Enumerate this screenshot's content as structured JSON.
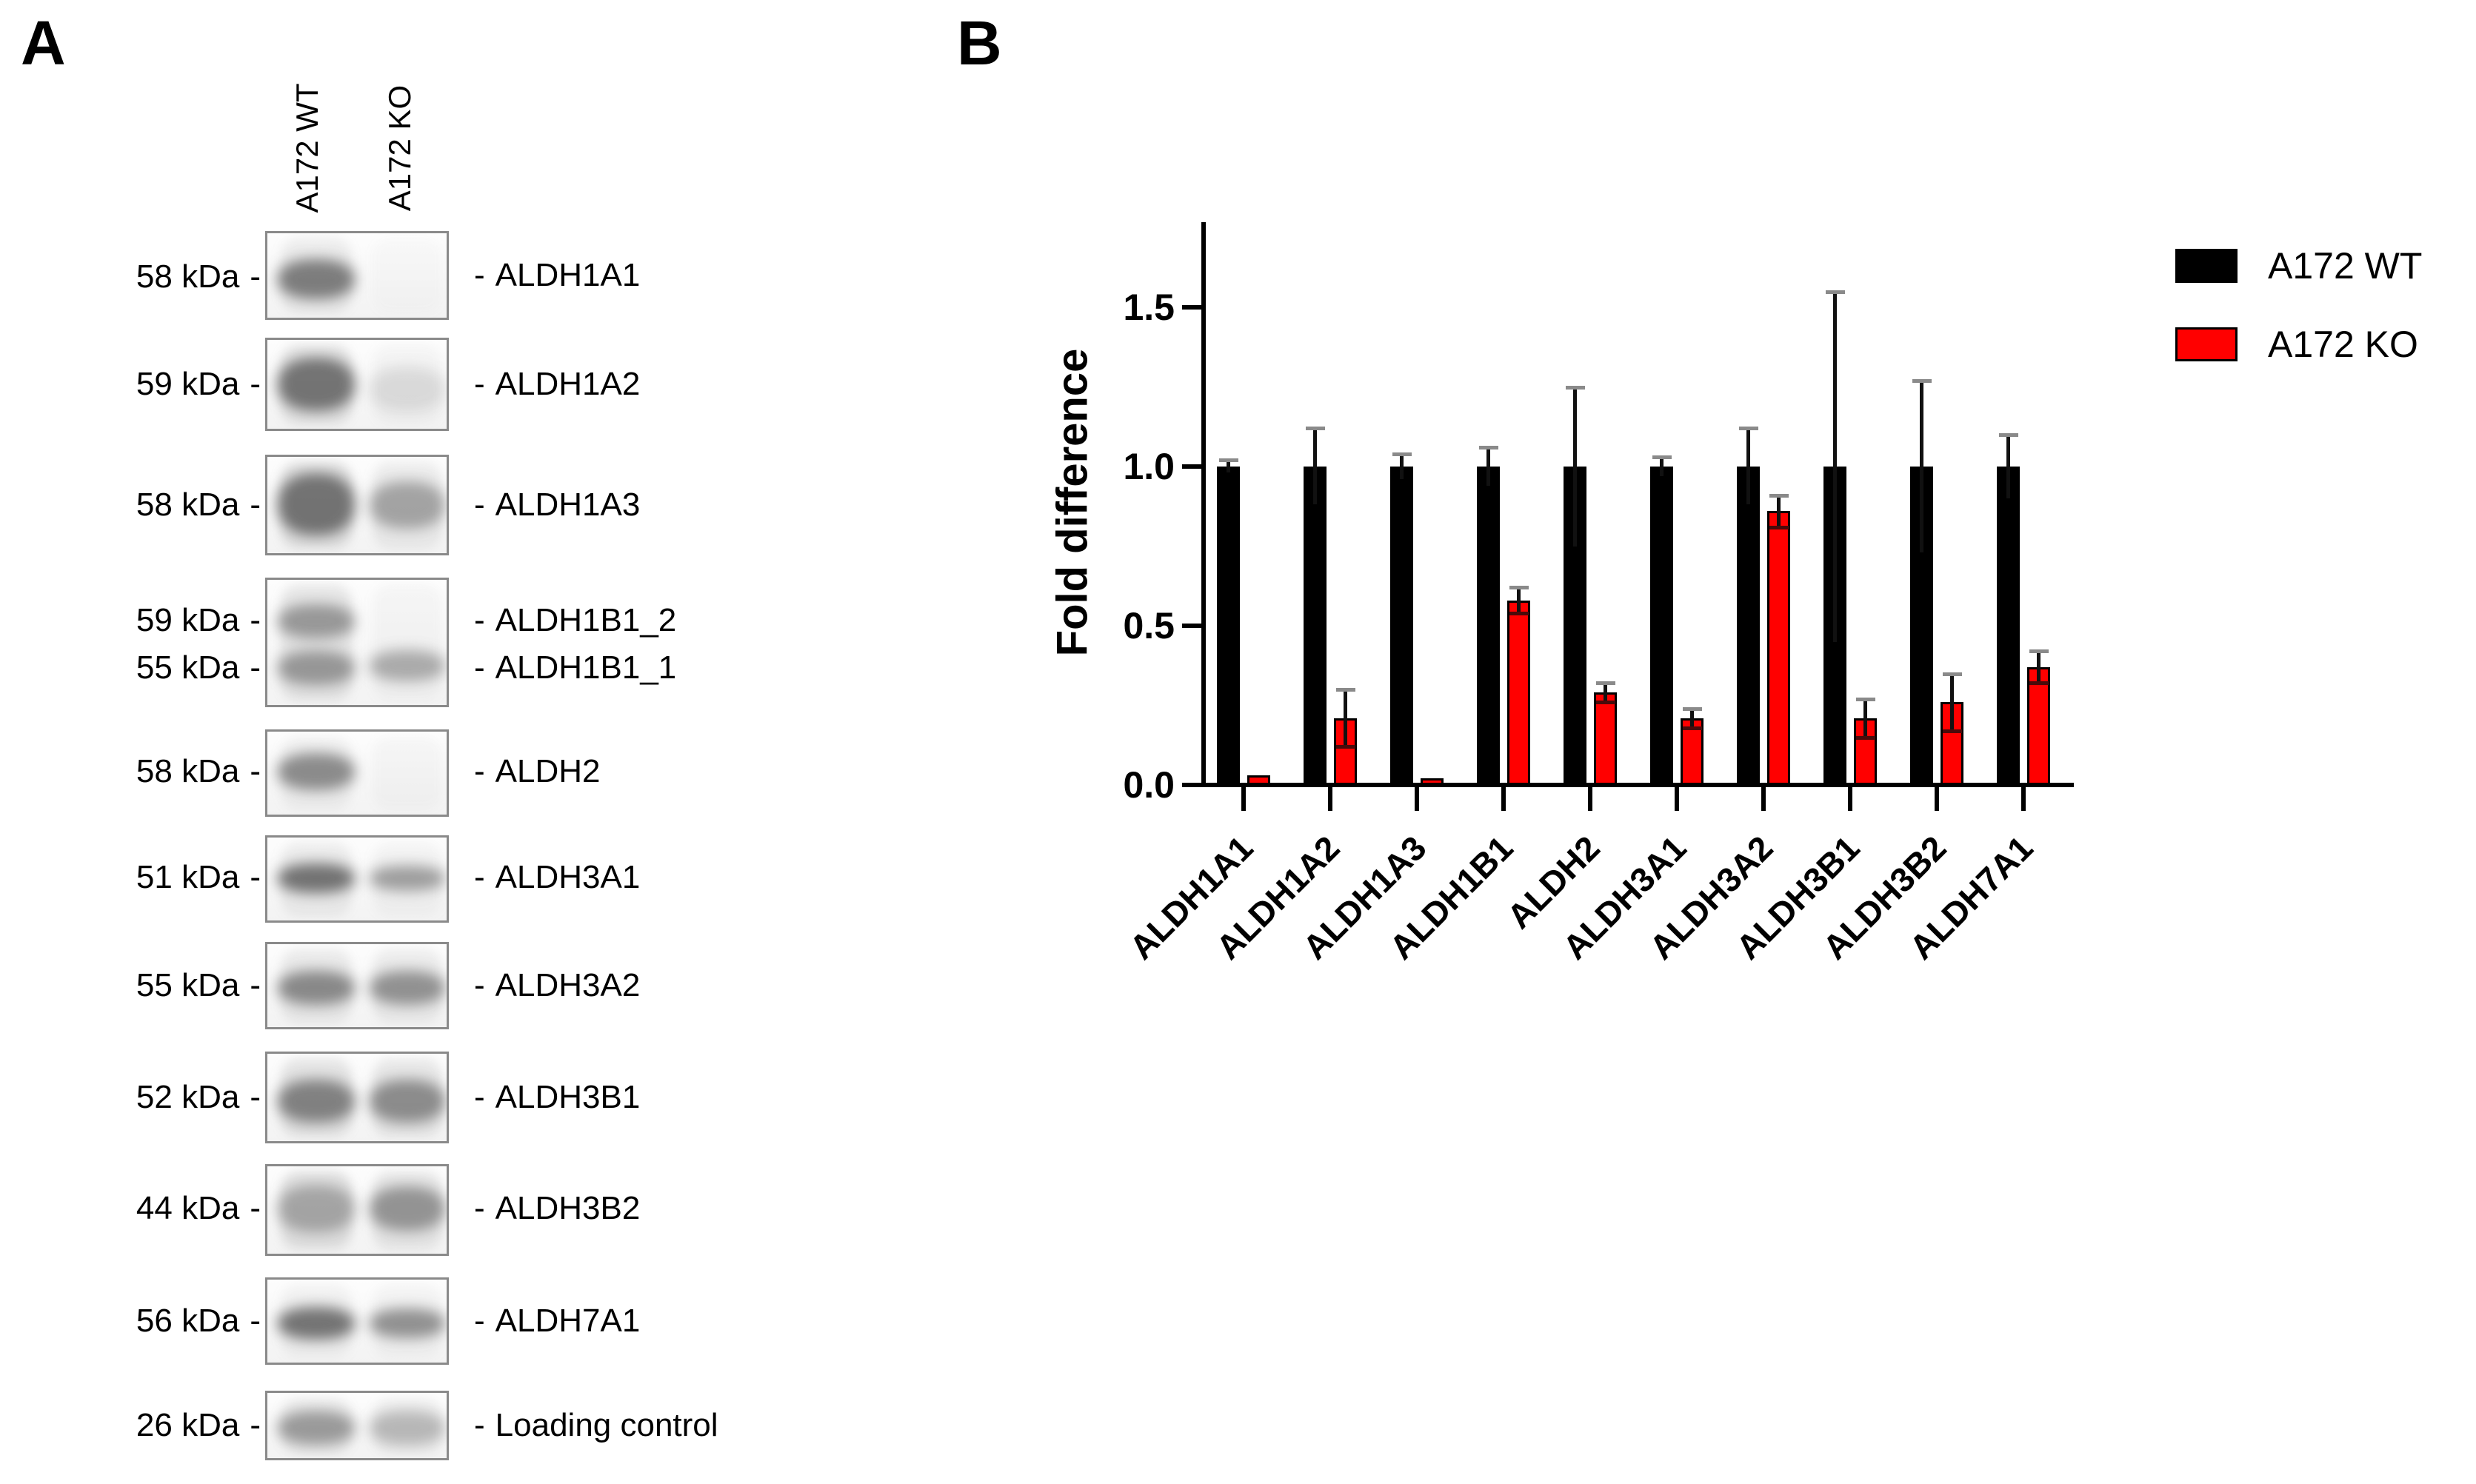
{
  "panel_a": {
    "label": "A",
    "tick_dash": "-",
    "column_headers": [
      "A172 WT",
      "A172 KO"
    ],
    "rows": [
      {
        "kda": [
          {
            "text": "58 kDa",
            "pos": 0.52
          }
        ],
        "protein": [
          {
            "text": "ALDH1A1",
            "pos": 0.5
          }
        ],
        "wt": {
          "smear": 0.1,
          "bands": [
            {
              "pos": 0.52,
              "h": 54,
              "a": 0.62
            }
          ]
        },
        "ko": {
          "smear": 0.03,
          "bands": []
        }
      },
      {
        "kda": [
          {
            "text": "59 kDa",
            "pos": 0.5
          }
        ],
        "protein": [
          {
            "text": "ALDH1A2",
            "pos": 0.5
          }
        ],
        "wt": {
          "smear": 0.16,
          "bands": [
            {
              "pos": 0.48,
              "h": 72,
              "a": 0.66
            }
          ]
        },
        "ko": {
          "smear": 0.05,
          "bands": [
            {
              "pos": 0.52,
              "h": 60,
              "a": 0.13
            }
          ]
        }
      },
      {
        "kda": [
          {
            "text": "58 kDa",
            "pos": 0.5
          }
        ],
        "protein": [
          {
            "text": "ALDH1A3",
            "pos": 0.5
          }
        ],
        "wt": {
          "smear": 0.18,
          "bands": [
            {
              "pos": 0.47,
              "h": 84,
              "a": 0.66
            }
          ]
        },
        "ko": {
          "smear": 0.1,
          "bands": [
            {
              "pos": 0.48,
              "h": 64,
              "a": 0.4
            }
          ]
        }
      },
      {
        "kda": [
          {
            "text": "59 kDa",
            "pos": 0.33
          },
          {
            "text": "55 kDa",
            "pos": 0.7
          }
        ],
        "protein": [
          {
            "text": "ALDH1B1_2",
            "pos": 0.33
          },
          {
            "text": "ALDH1B1_1",
            "pos": 0.7
          }
        ],
        "wt": {
          "smear": 0.15,
          "bands": [
            {
              "pos": 0.32,
              "h": 46,
              "a": 0.45
            },
            {
              "pos": 0.68,
              "h": 46,
              "a": 0.45
            }
          ]
        },
        "ko": {
          "smear": 0.05,
          "bands": [
            {
              "pos": 0.66,
              "h": 42,
              "a": 0.38
            }
          ]
        }
      },
      {
        "kda": [
          {
            "text": "58 kDa",
            "pos": 0.48
          }
        ],
        "protein": [
          {
            "text": "ALDH2",
            "pos": 0.48
          }
        ],
        "wt": {
          "smear": 0.08,
          "bands": [
            {
              "pos": 0.46,
              "h": 50,
              "a": 0.55
            }
          ]
        },
        "ko": {
          "smear": 0.04,
          "bands": []
        }
      },
      {
        "kda": [
          {
            "text": "51 kDa",
            "pos": 0.48
          }
        ],
        "protein": [
          {
            "text": "ALDH3A1",
            "pos": 0.48
          }
        ],
        "wt": {
          "smear": 0.1,
          "bands": [
            {
              "pos": 0.47,
              "h": 40,
              "a": 0.68
            }
          ]
        },
        "ko": {
          "smear": 0.06,
          "bands": [
            {
              "pos": 0.47,
              "h": 34,
              "a": 0.45
            }
          ]
        }
      },
      {
        "kda": [
          {
            "text": "55 kDa",
            "pos": 0.5
          }
        ],
        "protein": [
          {
            "text": "ALDH3A2",
            "pos": 0.5
          }
        ],
        "wt": {
          "smear": 0.12,
          "bands": [
            {
              "pos": 0.5,
              "h": 46,
              "a": 0.55
            }
          ]
        },
        "ko": {
          "smear": 0.1,
          "bands": [
            {
              "pos": 0.5,
              "h": 46,
              "a": 0.5
            }
          ]
        }
      },
      {
        "kda": [
          {
            "text": "52 kDa",
            "pos": 0.5
          }
        ],
        "protein": [
          {
            "text": "ALDH3B1",
            "pos": 0.5
          }
        ],
        "wt": {
          "smear": 0.16,
          "bands": [
            {
              "pos": 0.52,
              "h": 58,
              "a": 0.58
            }
          ]
        },
        "ko": {
          "smear": 0.14,
          "bands": [
            {
              "pos": 0.52,
              "h": 58,
              "a": 0.52
            }
          ]
        }
      },
      {
        "kda": [
          {
            "text": "44 kDa",
            "pos": 0.48
          }
        ],
        "protein": [
          {
            "text": "ALDH3B2",
            "pos": 0.48
          }
        ],
        "wt": {
          "smear": 0.18,
          "bands": [
            {
              "pos": 0.46,
              "h": 64,
              "a": 0.36
            }
          ]
        },
        "ko": {
          "smear": 0.14,
          "bands": [
            {
              "pos": 0.46,
              "h": 60,
              "a": 0.48
            }
          ]
        }
      },
      {
        "kda": [
          {
            "text": "56 kDa",
            "pos": 0.5
          }
        ],
        "protein": [
          {
            "text": "ALDH7A1",
            "pos": 0.5
          }
        ],
        "wt": {
          "smear": 0.07,
          "bands": [
            {
              "pos": 0.5,
              "h": 44,
              "a": 0.68
            }
          ]
        },
        "ko": {
          "smear": 0.06,
          "bands": [
            {
              "pos": 0.5,
              "h": 40,
              "a": 0.52
            }
          ]
        }
      },
      {
        "kda": [
          {
            "text": "26 kDa",
            "pos": 0.5
          }
        ],
        "protein": [
          {
            "text": "Loading control",
            "pos": 0.5
          }
        ],
        "wt": {
          "smear": 0.1,
          "bands": [
            {
              "pos": 0.5,
              "h": 46,
              "a": 0.45
            }
          ]
        },
        "ko": {
          "smear": 0.08,
          "bands": [
            {
              "pos": 0.5,
              "h": 46,
              "a": 0.3
            }
          ]
        }
      }
    ]
  },
  "panel_b": {
    "label": "B"
  },
  "chart_data": {
    "type": "bar",
    "title": "",
    "categories": [
      "ALDH1A1",
      "ALDH1A2",
      "ALDH1A3",
      "ALDH1B1",
      "ALDH2",
      "ALDH3A1",
      "ALDH3A2",
      "ALDH3B1",
      "ALDH3B2",
      "ALDH7A1"
    ],
    "series": [
      {
        "name": "A172 WT",
        "color": "#000000",
        "values": [
          1.0,
          1.0,
          1.0,
          1.0,
          1.0,
          1.0,
          1.0,
          1.0,
          1.0,
          1.0
        ],
        "errors_up": [
          0.02,
          0.12,
          0.04,
          0.06,
          0.25,
          0.03,
          0.12,
          0.55,
          0.27,
          0.1
        ]
      },
      {
        "name": "A172 KO",
        "color": "#ff0000",
        "values": [
          0.03,
          0.21,
          0.02,
          0.58,
          0.29,
          0.21,
          0.86,
          0.21,
          0.26,
          0.37
        ],
        "errors_up": [
          0,
          0.09,
          0,
          0.04,
          0.03,
          0.03,
          0.05,
          0.06,
          0.09,
          0.05
        ]
      }
    ],
    "xlabel": "",
    "ylabel": "Fold difference",
    "yticks": [
      "0.0",
      "0.5",
      "1.0",
      "1.5"
    ],
    "ytick_values": [
      0,
      0.5,
      1.0,
      1.5
    ],
    "ylim": [
      0,
      1.77
    ],
    "grid": false,
    "legend_position": "top-right",
    "bar_outline": "#000000",
    "error_cap_color": "#8a8a8a",
    "error_line_color": "#111111"
  }
}
